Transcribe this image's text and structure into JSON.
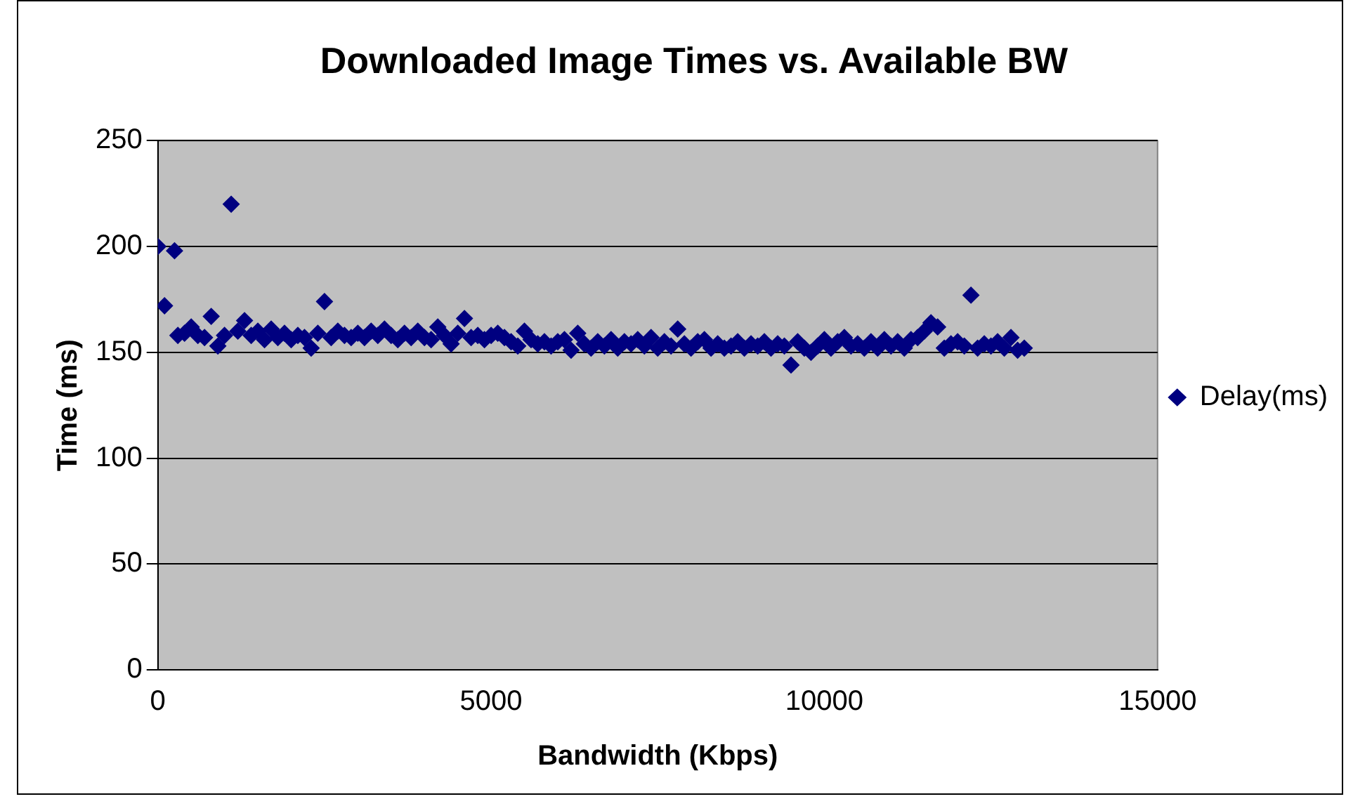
{
  "chart_data": {
    "type": "scatter",
    "title": "Downloaded Image Times vs. Available BW",
    "xlabel": "Bandwidth (Kbps)",
    "ylabel": "Time (ms)",
    "xlim": [
      0,
      15000
    ],
    "xticks": [
      0,
      5000,
      10000,
      15000
    ],
    "ylim": [
      0,
      250
    ],
    "yticks": [
      0,
      50,
      100,
      150,
      200,
      250
    ],
    "grid": "y",
    "legend": "right",
    "marker": "diamond",
    "series": [
      {
        "name": "Delay(ms)",
        "color": "#000080",
        "x": [
          0,
          100,
          250,
          300,
          400,
          500,
          600,
          700,
          800,
          900,
          1000,
          1100,
          1200,
          1300,
          1400,
          1500,
          1600,
          1700,
          1800,
          1900,
          2000,
          2100,
          2200,
          2300,
          2400,
          2500,
          2600,
          2700,
          2800,
          2900,
          3000,
          3100,
          3200,
          3300,
          3400,
          3500,
          3600,
          3700,
          3800,
          3900,
          4000,
          4100,
          4200,
          4300,
          4400,
          4500,
          4600,
          4700,
          4800,
          4900,
          5000,
          5100,
          5200,
          5300,
          5400,
          5500,
          5600,
          5700,
          5800,
          5900,
          6000,
          6100,
          6200,
          6300,
          6400,
          6500,
          6600,
          6700,
          6800,
          6900,
          7000,
          7100,
          7200,
          7300,
          7400,
          7500,
          7600,
          7700,
          7800,
          7900,
          8000,
          8100,
          8200,
          8300,
          8400,
          8500,
          8600,
          8700,
          8800,
          8900,
          9000,
          9100,
          9200,
          9300,
          9400,
          9500,
          9600,
          9700,
          9800,
          9900,
          10000,
          10100,
          10200,
          10300,
          10400,
          10500,
          10600,
          10700,
          10800,
          10900,
          11000,
          11100,
          11200,
          11300,
          11400,
          11500,
          11600,
          11700,
          11800,
          11900,
          12000,
          12100,
          12200,
          12300,
          12400,
          12500,
          12600,
          12700,
          12800,
          12900,
          13000
        ],
        "values": [
          200,
          172,
          198,
          158,
          159,
          162,
          158,
          157,
          167,
          153,
          158,
          220,
          160,
          165,
          158,
          160,
          156,
          161,
          157,
          159,
          156,
          158,
          157,
          152,
          159,
          174,
          157,
          160,
          158,
          157,
          159,
          157,
          160,
          158,
          161,
          158,
          156,
          159,
          157,
          160,
          157,
          156,
          162,
          158,
          154,
          159,
          166,
          157,
          158,
          156,
          158,
          159,
          157,
          155,
          153,
          160,
          156,
          154,
          155,
          153,
          155,
          156,
          151,
          159,
          154,
          152,
          155,
          153,
          156,
          152,
          155,
          154,
          156,
          153,
          157,
          152,
          155,
          153,
          161,
          154,
          152,
          155,
          156,
          152,
          154,
          152,
          153,
          155,
          152,
          154,
          153,
          155,
          152,
          154,
          153,
          144,
          155,
          152,
          150,
          153,
          156,
          152,
          155,
          157,
          153,
          154,
          152,
          155,
          152,
          156,
          153,
          155,
          152,
          156,
          157,
          160,
          164,
          162,
          152,
          154,
          155,
          153,
          177,
          152,
          154,
          153,
          155,
          152,
          157,
          151,
          152
        ]
      }
    ]
  }
}
